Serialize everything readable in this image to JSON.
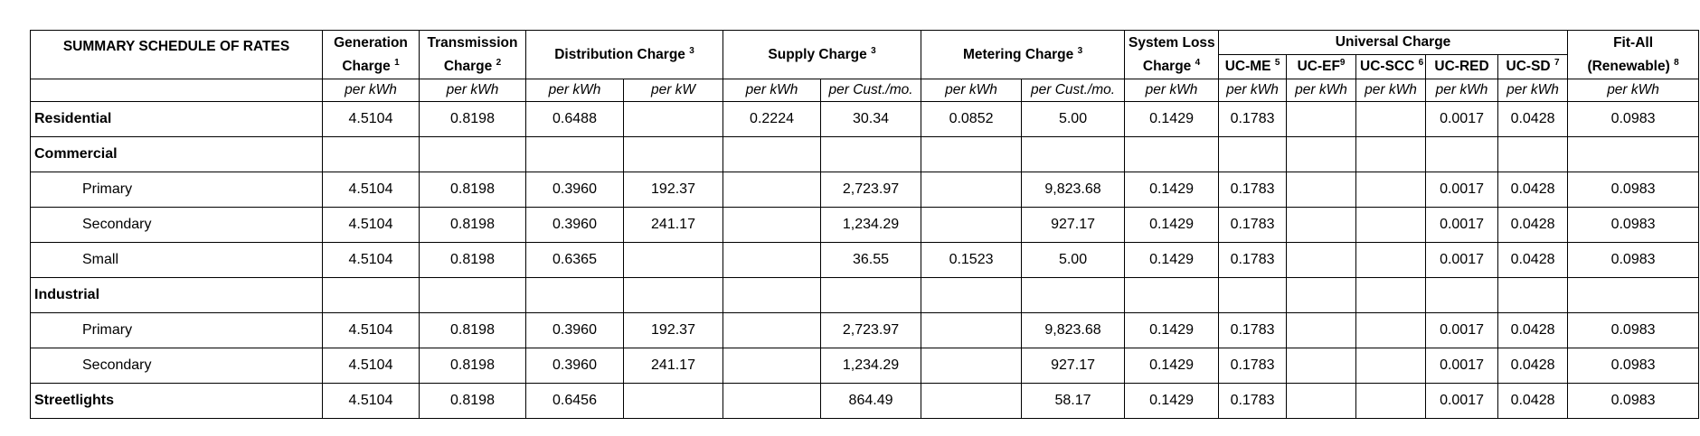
{
  "table": {
    "title": "SUMMARY SCHEDULE OF RATES",
    "headers": {
      "generation": {
        "line1": "Generation",
        "line2": "Charge",
        "note": "1"
      },
      "transmission": {
        "line1": "Transmission",
        "line2": "Charge",
        "note": "2"
      },
      "distribution": {
        "label": "Distribution Charge",
        "note": "3"
      },
      "supply": {
        "label": "Supply Charge",
        "note": "3"
      },
      "metering": {
        "label": "Metering Charge",
        "note": "3"
      },
      "system_loss": {
        "line1": "System Loss",
        "line2": "Charge",
        "note": "4"
      },
      "universal": {
        "label": "Universal Charge"
      },
      "uc_me": {
        "label": "UC-ME",
        "note": "5"
      },
      "uc_ef": {
        "label": "UC-EF",
        "note": "9"
      },
      "uc_scc": {
        "label": "UC-SCC",
        "note": "6"
      },
      "uc_red": {
        "label": "UC-RED"
      },
      "uc_sd": {
        "label": "UC-SD",
        "note": "7"
      },
      "fit_all": {
        "line1": "Fit-All",
        "line2": "(Renewable)",
        "note": "8"
      }
    },
    "units": [
      "per kWh",
      "per kWh",
      "per kWh",
      "per kW",
      "per kWh",
      "per Cust./mo.",
      "per kWh",
      "per Cust./mo.",
      "per kWh",
      "per kWh",
      "per kWh",
      "per kWh",
      "per kWh",
      "per kWh",
      "per kWh"
    ],
    "rows": [
      {
        "label": "Residential",
        "style": "bold",
        "values": [
          "4.5104",
          "0.8198",
          "0.6488",
          "",
          "0.2224",
          "30.34",
          "0.0852",
          "5.00",
          "0.1429",
          "0.1783",
          "",
          "",
          "0.0017",
          "0.0428",
          "0.0983"
        ]
      },
      {
        "label": "Commercial",
        "style": "bold",
        "values": [
          "",
          "",
          "",
          "",
          "",
          "",
          "",
          "",
          "",
          "",
          "",
          "",
          "",
          "",
          ""
        ]
      },
      {
        "label": "Primary",
        "style": "indent",
        "values": [
          "4.5104",
          "0.8198",
          "0.3960",
          "192.37",
          "",
          "2,723.97",
          "",
          "9,823.68",
          "0.1429",
          "0.1783",
          "",
          "",
          "0.0017",
          "0.0428",
          "0.0983"
        ]
      },
      {
        "label": "Secondary",
        "style": "indent",
        "values": [
          "4.5104",
          "0.8198",
          "0.3960",
          "241.17",
          "",
          "1,234.29",
          "",
          "927.17",
          "0.1429",
          "0.1783",
          "",
          "",
          "0.0017",
          "0.0428",
          "0.0983"
        ]
      },
      {
        "label": "Small",
        "style": "indent",
        "values": [
          "4.5104",
          "0.8198",
          "0.6365",
          "",
          "",
          "36.55",
          "0.1523",
          "5.00",
          "0.1429",
          "0.1783",
          "",
          "",
          "0.0017",
          "0.0428",
          "0.0983"
        ]
      },
      {
        "label": "Industrial",
        "style": "bold",
        "values": [
          "",
          "",
          "",
          "",
          "",
          "",
          "",
          "",
          "",
          "",
          "",
          "",
          "",
          "",
          ""
        ]
      },
      {
        "label": "Primary",
        "style": "indent",
        "values": [
          "4.5104",
          "0.8198",
          "0.3960",
          "192.37",
          "",
          "2,723.97",
          "",
          "9,823.68",
          "0.1429",
          "0.1783",
          "",
          "",
          "0.0017",
          "0.0428",
          "0.0983"
        ]
      },
      {
        "label": "Secondary",
        "style": "indent",
        "values": [
          "4.5104",
          "0.8198",
          "0.3960",
          "241.17",
          "",
          "1,234.29",
          "",
          "927.17",
          "0.1429",
          "0.1783",
          "",
          "",
          "0.0017",
          "0.0428",
          "0.0983"
        ]
      },
      {
        "label": "Streetlights",
        "style": "bold",
        "values": [
          "4.5104",
          "0.8198",
          "0.6456",
          "",
          "",
          "864.49",
          "",
          "58.17",
          "0.1429",
          "0.1783",
          "",
          "",
          "0.0017",
          "0.0428",
          "0.0983"
        ]
      }
    ]
  }
}
